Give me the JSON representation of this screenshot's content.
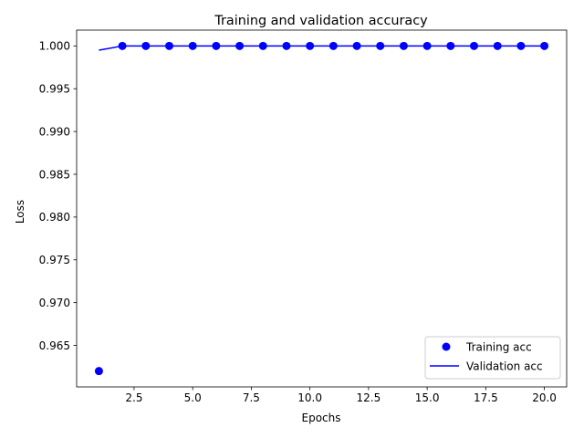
{
  "chart_data": {
    "type": "line",
    "title": "Training and validation accuracy",
    "xlabel": "Epochs",
    "ylabel": "Loss",
    "xlim": [
      0.05,
      20.95
    ],
    "ylim": [
      0.96015,
      1.00185
    ],
    "x_ticks": [
      2.5,
      5.0,
      7.5,
      10.0,
      12.5,
      15.0,
      17.5,
      20.0
    ],
    "x_tick_labels": [
      "2.5",
      "5.0",
      "7.5",
      "10.0",
      "12.5",
      "15.0",
      "17.5",
      "20.0"
    ],
    "y_ticks": [
      0.965,
      0.97,
      0.975,
      0.98,
      0.985,
      0.99,
      0.995,
      1.0
    ],
    "y_tick_labels": [
      "0.965",
      "0.970",
      "0.975",
      "0.980",
      "0.985",
      "0.990",
      "0.995",
      "1.000"
    ],
    "grid": false,
    "legend_position": "bottom-right",
    "x": [
      1,
      2,
      3,
      4,
      5,
      6,
      7,
      8,
      9,
      10,
      11,
      12,
      13,
      14,
      15,
      16,
      17,
      18,
      19,
      20
    ],
    "series": [
      {
        "name": "Training acc",
        "style": "markers",
        "color": "#0000ff",
        "values": [
          0.962,
          1.0,
          1.0,
          1.0,
          1.0,
          1.0,
          1.0,
          1.0,
          1.0,
          1.0,
          1.0,
          1.0,
          1.0,
          1.0,
          1.0,
          1.0,
          1.0,
          1.0,
          1.0,
          1.0
        ]
      },
      {
        "name": "Validation acc",
        "style": "line",
        "color": "#0000ff",
        "values": [
          0.9995,
          1.0,
          1.0,
          1.0,
          1.0,
          1.0,
          1.0,
          1.0,
          1.0,
          1.0,
          1.0,
          1.0,
          1.0,
          1.0,
          1.0,
          1.0,
          1.0,
          1.0,
          1.0,
          1.0
        ]
      }
    ]
  }
}
